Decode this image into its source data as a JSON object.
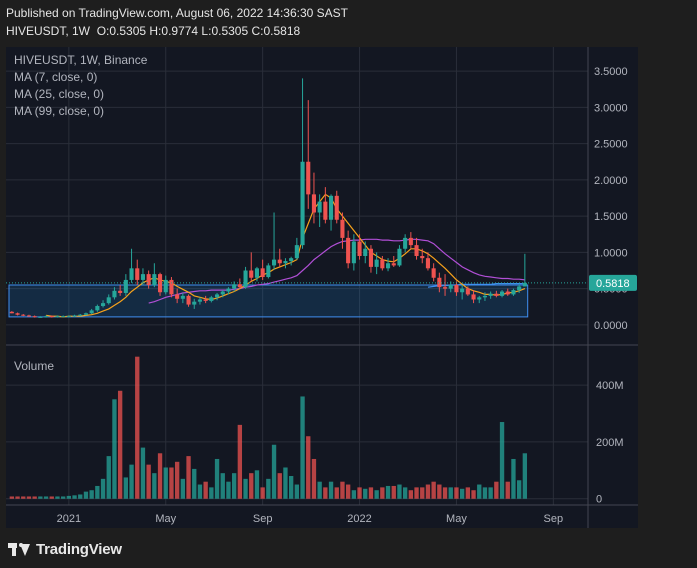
{
  "header": {
    "published": "Published on TradingView.com, August 06, 2022 14:36:30 SAST",
    "symbol": "HIVEUSDT, 1W",
    "ohlc": "O:0.5305 H:0.9774 L:0.5305 C:0.5818"
  },
  "legend": {
    "title": "HIVEUSDT, 1W, Binance",
    "ma7": "MA (7, close, 0)",
    "ma25": "MA (25, close, 0)",
    "ma99": "MA (99, close, 0)",
    "volume": "Volume"
  },
  "footer": {
    "brand": "TradingView"
  },
  "colors": {
    "up": "#26a69a",
    "down": "#ef5350",
    "ma7": "#f7a21b",
    "ma25": "#b14fd6",
    "ma99": "#3f8ff2",
    "price_label_bg": "#26a69a",
    "grid": "#2a2e39",
    "axis_text": "#b2b5be"
  },
  "chart_data": {
    "type": "candlestick",
    "title": "HIVEUSDT, 1W, Binance",
    "last_price_label": "0.5818",
    "price_axis": {
      "ticks": [
        0,
        0.5,
        1.0,
        1.5,
        2.0,
        2.5,
        3.0,
        3.5
      ],
      "tick_labels": [
        "0.0000",
        "0.5000",
        "1.0000",
        "1.5000",
        "2.0000",
        "2.5000",
        "3.0000",
        "3.5000"
      ],
      "range": [
        -0.25,
        3.75
      ]
    },
    "volume_axis": {
      "ticks": [
        0,
        200,
        400
      ],
      "tick_labels": [
        "0",
        "200M",
        "400M"
      ],
      "range": [
        -15,
        520
      ]
    },
    "x_axis": {
      "labels": [
        "2021",
        "May",
        "Sep",
        "2022",
        "May",
        "Sep"
      ],
      "label_bar_index": [
        10,
        27,
        44,
        61,
        78,
        95
      ]
    },
    "candles": [
      [
        0.18,
        0.19,
        0.16,
        0.16
      ],
      [
        0.16,
        0.17,
        0.13,
        0.14
      ],
      [
        0.14,
        0.15,
        0.12,
        0.13
      ],
      [
        0.13,
        0.14,
        0.11,
        0.12
      ],
      [
        0.12,
        0.13,
        0.1,
        0.11
      ],
      [
        0.11,
        0.12,
        0.1,
        0.11
      ],
      [
        0.11,
        0.13,
        0.1,
        0.12
      ],
      [
        0.12,
        0.13,
        0.1,
        0.11
      ],
      [
        0.11,
        0.13,
        0.1,
        0.12
      ],
      [
        0.12,
        0.13,
        0.11,
        0.12
      ],
      [
        0.12,
        0.13,
        0.11,
        0.12
      ],
      [
        0.12,
        0.14,
        0.11,
        0.13
      ],
      [
        0.13,
        0.15,
        0.12,
        0.14
      ],
      [
        0.14,
        0.17,
        0.13,
        0.16
      ],
      [
        0.16,
        0.22,
        0.15,
        0.2
      ],
      [
        0.2,
        0.28,
        0.18,
        0.26
      ],
      [
        0.26,
        0.34,
        0.24,
        0.3
      ],
      [
        0.3,
        0.42,
        0.28,
        0.38
      ],
      [
        0.38,
        0.52,
        0.35,
        0.47
      ],
      [
        0.47,
        0.55,
        0.4,
        0.44
      ],
      [
        0.44,
        0.7,
        0.4,
        0.62
      ],
      [
        0.62,
        1.05,
        0.58,
        0.78
      ],
      [
        0.78,
        0.9,
        0.55,
        0.62
      ],
      [
        0.62,
        0.78,
        0.55,
        0.7
      ],
      [
        0.7,
        0.75,
        0.5,
        0.55
      ],
      [
        0.55,
        0.85,
        0.52,
        0.7
      ],
      [
        0.7,
        0.72,
        0.4,
        0.45
      ],
      [
        0.45,
        0.68,
        0.42,
        0.62
      ],
      [
        0.62,
        0.66,
        0.38,
        0.42
      ],
      [
        0.42,
        0.5,
        0.3,
        0.36
      ],
      [
        0.36,
        0.44,
        0.3,
        0.4
      ],
      [
        0.4,
        0.42,
        0.25,
        0.28
      ],
      [
        0.28,
        0.36,
        0.22,
        0.32
      ],
      [
        0.32,
        0.38,
        0.28,
        0.35
      ],
      [
        0.35,
        0.4,
        0.3,
        0.33
      ],
      [
        0.33,
        0.4,
        0.31,
        0.38
      ],
      [
        0.38,
        0.44,
        0.34,
        0.42
      ],
      [
        0.42,
        0.48,
        0.38,
        0.46
      ],
      [
        0.46,
        0.52,
        0.42,
        0.5
      ],
      [
        0.5,
        0.6,
        0.46,
        0.56
      ],
      [
        0.56,
        0.64,
        0.5,
        0.52
      ],
      [
        0.52,
        0.8,
        0.5,
        0.75
      ],
      [
        0.75,
        1.0,
        0.6,
        0.65
      ],
      [
        0.65,
        0.8,
        0.6,
        0.78
      ],
      [
        0.78,
        0.9,
        0.62,
        0.66
      ],
      [
        0.66,
        0.85,
        0.64,
        0.82
      ],
      [
        0.82,
        1.55,
        0.76,
        0.9
      ],
      [
        0.9,
        1.05,
        0.8,
        0.85
      ],
      [
        0.85,
        0.92,
        0.78,
        0.88
      ],
      [
        0.88,
        0.94,
        0.82,
        0.92
      ],
      [
        0.92,
        1.2,
        0.9,
        1.1
      ],
      [
        1.1,
        3.4,
        1.05,
        2.25
      ],
      [
        2.25,
        3.1,
        1.6,
        1.8
      ],
      [
        1.8,
        2.1,
        1.4,
        1.55
      ],
      [
        1.55,
        1.8,
        1.35,
        1.7
      ],
      [
        1.7,
        1.9,
        1.4,
        1.45
      ],
      [
        1.45,
        1.8,
        1.3,
        1.78
      ],
      [
        1.78,
        1.85,
        1.4,
        1.45
      ],
      [
        1.45,
        1.55,
        1.05,
        1.2
      ],
      [
        1.2,
        1.3,
        0.78,
        0.85
      ],
      [
        0.85,
        1.25,
        0.75,
        1.15
      ],
      [
        1.15,
        1.25,
        0.9,
        0.95
      ],
      [
        0.95,
        1.15,
        0.85,
        1.05
      ],
      [
        1.05,
        1.1,
        0.72,
        0.8
      ],
      [
        0.8,
        1.0,
        0.7,
        0.9
      ],
      [
        0.9,
        0.95,
        0.75,
        0.78
      ],
      [
        0.78,
        0.92,
        0.74,
        0.85
      ],
      [
        0.85,
        0.95,
        0.8,
        0.82
      ],
      [
        0.82,
        1.1,
        0.8,
        1.05
      ],
      [
        1.05,
        1.25,
        1.0,
        1.2
      ],
      [
        1.2,
        1.28,
        1.05,
        1.1
      ],
      [
        1.1,
        1.2,
        0.9,
        0.95
      ],
      [
        0.95,
        1.05,
        0.85,
        0.92
      ],
      [
        0.92,
        1.0,
        0.75,
        0.78
      ],
      [
        0.78,
        0.85,
        0.6,
        0.65
      ],
      [
        0.65,
        0.72,
        0.45,
        0.52
      ],
      [
        0.52,
        0.7,
        0.4,
        0.5
      ],
      [
        0.5,
        0.6,
        0.45,
        0.55
      ],
      [
        0.55,
        0.6,
        0.4,
        0.45
      ],
      [
        0.45,
        0.55,
        0.35,
        0.5
      ],
      [
        0.5,
        0.53,
        0.4,
        0.42
      ],
      [
        0.42,
        0.48,
        0.3,
        0.35
      ],
      [
        0.35,
        0.4,
        0.3,
        0.38
      ],
      [
        0.38,
        0.45,
        0.33,
        0.4
      ],
      [
        0.4,
        0.46,
        0.36,
        0.43
      ],
      [
        0.43,
        0.47,
        0.38,
        0.4
      ],
      [
        0.4,
        0.48,
        0.38,
        0.46
      ],
      [
        0.46,
        0.5,
        0.4,
        0.42
      ],
      [
        0.42,
        0.5,
        0.4,
        0.48
      ],
      [
        0.48,
        0.56,
        0.44,
        0.53
      ],
      [
        0.53,
        0.98,
        0.53,
        0.58
      ]
    ],
    "volume_millions": [
      8,
      8,
      8,
      8,
      8,
      8,
      8,
      8,
      8,
      8,
      10,
      12,
      15,
      25,
      30,
      45,
      70,
      150,
      350,
      380,
      75,
      120,
      500,
      180,
      120,
      90,
      160,
      110,
      110,
      130,
      70,
      150,
      105,
      50,
      60,
      40,
      140,
      90,
      60,
      90,
      260,
      70,
      90,
      100,
      40,
      70,
      190,
      90,
      110,
      80,
      50,
      360,
      220,
      140,
      60,
      40,
      60,
      40,
      60,
      50,
      30,
      40,
      35,
      40,
      30,
      40,
      45,
      45,
      50,
      40,
      30,
      40,
      40,
      50,
      60,
      50,
      40,
      40,
      40,
      35,
      40,
      30,
      50,
      40,
      40,
      60,
      270,
      60,
      140,
      65,
      160
    ],
    "ma7": [
      null,
      null,
      null,
      null,
      null,
      null,
      0.13,
      0.12,
      0.12,
      0.11,
      0.12,
      0.12,
      0.12,
      0.13,
      0.14,
      0.16,
      0.19,
      0.22,
      0.27,
      0.32,
      0.38,
      0.46,
      0.52,
      0.58,
      0.62,
      0.65,
      0.62,
      0.6,
      0.58,
      0.53,
      0.49,
      0.45,
      0.4,
      0.38,
      0.36,
      0.35,
      0.37,
      0.4,
      0.43,
      0.46,
      0.5,
      0.55,
      0.6,
      0.64,
      0.69,
      0.72,
      0.77,
      0.8,
      0.83,
      0.86,
      0.9,
      1.2,
      1.4,
      1.6,
      1.7,
      1.8,
      1.75,
      1.6,
      1.5,
      1.4,
      1.3,
      1.2,
      1.1,
      1.0,
      0.95,
      0.9,
      0.88,
      0.87,
      0.92,
      0.98,
      1.05,
      1.05,
      1.02,
      0.98,
      0.92,
      0.85,
      0.78,
      0.7,
      0.62,
      0.56,
      0.5,
      0.47,
      0.45,
      0.42,
      0.42,
      0.41,
      0.42,
      0.44,
      0.45,
      0.47,
      0.5
    ],
    "ma25": [
      null,
      null,
      null,
      null,
      null,
      null,
      null,
      null,
      null,
      null,
      null,
      null,
      null,
      null,
      null,
      null,
      null,
      null,
      null,
      null,
      null,
      null,
      null,
      null,
      0.3,
      0.32,
      0.35,
      0.38,
      0.4,
      0.42,
      0.44,
      0.45,
      0.46,
      0.47,
      0.47,
      0.48,
      0.48,
      0.48,
      0.48,
      0.49,
      0.5,
      0.52,
      0.53,
      0.55,
      0.56,
      0.57,
      0.59,
      0.61,
      0.63,
      0.65,
      0.68,
      0.75,
      0.82,
      0.9,
      0.96,
      1.02,
      1.08,
      1.12,
      1.15,
      1.16,
      1.17,
      1.17,
      1.18,
      1.18,
      1.18,
      1.17,
      1.17,
      1.16,
      1.16,
      1.17,
      1.18,
      1.18,
      1.17,
      1.16,
      1.12,
      1.05,
      0.98,
      0.92,
      0.86,
      0.8,
      0.76,
      0.72,
      0.69,
      0.67,
      0.66,
      0.65,
      0.64,
      0.64,
      0.63,
      0.63,
      0.62
    ],
    "ma99_start_index": 73,
    "ma99_values": [
      0.52,
      0.53,
      0.54,
      0.54,
      0.55,
      0.55,
      0.56,
      0.56,
      0.56,
      0.56,
      0.56,
      0.56,
      0.57,
      0.57,
      0.57,
      0.57,
      0.57,
      0.57
    ],
    "support_zone": {
      "start_index": 0,
      "end_index": 90,
      "low": 0.11,
      "high": 0.55
    }
  }
}
